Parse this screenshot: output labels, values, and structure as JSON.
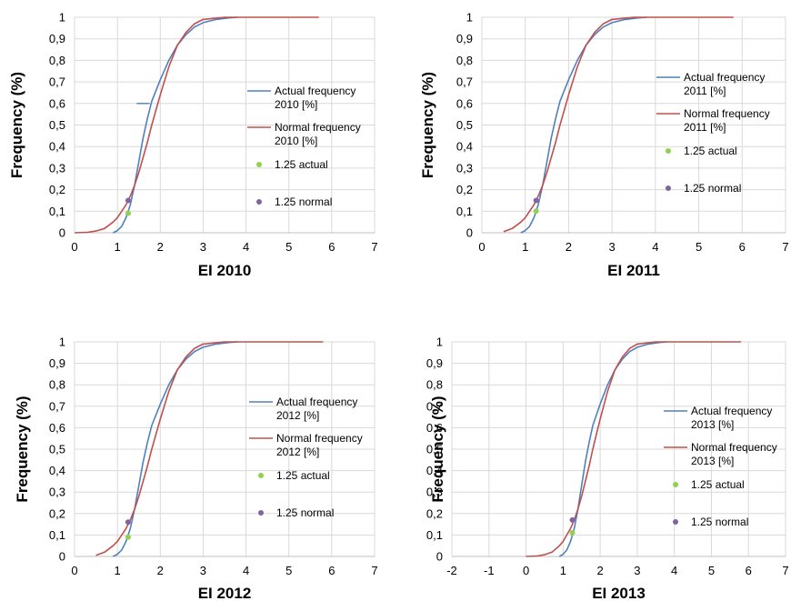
{
  "chart_data": [
    {
      "type": "line",
      "xlabel": "EI 2010",
      "ylabel": "Frequency (%)",
      "xlim": [
        0,
        7
      ],
      "ylim": [
        0,
        1
      ],
      "xticks": [
        "0",
        "1",
        "2",
        "3",
        "4",
        "5",
        "6",
        "7"
      ],
      "yticks": [
        "0",
        "0,1",
        "0,2",
        "0,3",
        "0,4",
        "0,5",
        "0,6",
        "0,7",
        "0,8",
        "0,9",
        "1"
      ],
      "grid": true,
      "legend_position": "right",
      "series": [
        {
          "name": "Actual frequency 2010 [%]",
          "color": "#4f81bd",
          "x": [
            0.9,
            1.0,
            1.1,
            1.2,
            1.3,
            1.4,
            1.5,
            1.6,
            1.7,
            1.8,
            2.0,
            2.2,
            2.4,
            2.6,
            2.8,
            3.0,
            3.3,
            3.6,
            3.8
          ],
          "y": [
            0,
            0.01,
            0.03,
            0.07,
            0.13,
            0.22,
            0.33,
            0.44,
            0.53,
            0.61,
            0.71,
            0.8,
            0.87,
            0.92,
            0.955,
            0.975,
            0.99,
            0.997,
            1
          ]
        },
        {
          "name": "Normal frequency 2010 [%]",
          "color": "#c0504d",
          "x": [
            0,
            0.3,
            0.5,
            0.7,
            0.9,
            1.0,
            1.1,
            1.2,
            1.3,
            1.4,
            1.5,
            1.6,
            1.7,
            1.8,
            1.9,
            2.0,
            2.2,
            2.4,
            2.6,
            2.8,
            3.0,
            3.5,
            4.0,
            5.7
          ],
          "y": [
            0,
            0.002,
            0.008,
            0.02,
            0.05,
            0.07,
            0.1,
            0.13,
            0.17,
            0.22,
            0.28,
            0.35,
            0.42,
            0.5,
            0.57,
            0.64,
            0.77,
            0.87,
            0.93,
            0.97,
            0.99,
            1,
            1,
            1
          ]
        },
        {
          "name": "1.25 actual",
          "color": "#92d050",
          "marker": "dot",
          "x": [
            1.25
          ],
          "y": [
            0.09
          ]
        },
        {
          "name": "1.25 normal",
          "color": "#8064a2",
          "marker": "dot",
          "x": [
            1.25
          ],
          "y": [
            0.15
          ]
        }
      ],
      "extra_segment": {
        "x": [
          1.45,
          1.75
        ],
        "y": 0.6,
        "color": "#4f81bd"
      }
    },
    {
      "type": "line",
      "xlabel": "EI 2011",
      "ylabel": "Frequency (%)",
      "xlim": [
        0,
        7
      ],
      "ylim": [
        0,
        1
      ],
      "xticks": [
        "0",
        "1",
        "2",
        "3",
        "4",
        "5",
        "6",
        "7"
      ],
      "yticks": [
        "0",
        "0,1",
        "0,2",
        "0,3",
        "0,4",
        "0,5",
        "0,6",
        "0,7",
        "0,8",
        "0,9",
        "1"
      ],
      "grid": true,
      "legend_position": "right",
      "series": [
        {
          "name": "Actual frequency 2011 [%]",
          "color": "#4f81bd",
          "x": [
            0.9,
            1.0,
            1.1,
            1.2,
            1.3,
            1.4,
            1.5,
            1.6,
            1.7,
            1.8,
            2.0,
            2.2,
            2.4,
            2.6,
            2.8,
            3.0,
            3.3,
            3.6,
            3.8
          ],
          "y": [
            0,
            0.01,
            0.03,
            0.07,
            0.13,
            0.22,
            0.33,
            0.44,
            0.53,
            0.61,
            0.71,
            0.8,
            0.87,
            0.92,
            0.955,
            0.975,
            0.99,
            0.997,
            1
          ]
        },
        {
          "name": "Normal frequency 2011 [%]",
          "color": "#c0504d",
          "x": [
            0.5,
            0.7,
            0.9,
            1.0,
            1.1,
            1.2,
            1.3,
            1.4,
            1.5,
            1.6,
            1.7,
            1.8,
            1.9,
            2.0,
            2.2,
            2.4,
            2.6,
            2.8,
            3.0,
            3.5,
            4.0,
            5.8
          ],
          "y": [
            0.005,
            0.02,
            0.05,
            0.07,
            0.1,
            0.13,
            0.17,
            0.22,
            0.28,
            0.35,
            0.42,
            0.5,
            0.57,
            0.64,
            0.77,
            0.87,
            0.93,
            0.97,
            0.99,
            1,
            1,
            1
          ]
        },
        {
          "name": "1.25 actual",
          "color": "#92d050",
          "marker": "dot",
          "x": [
            1.25
          ],
          "y": [
            0.1
          ]
        },
        {
          "name": "1.25 normal",
          "color": "#8064a2",
          "marker": "dot",
          "x": [
            1.25
          ],
          "y": [
            0.15
          ]
        }
      ]
    },
    {
      "type": "line",
      "xlabel": "EI 2012",
      "ylabel": "Frequency (%)",
      "xlim": [
        0,
        7
      ],
      "ylim": [
        0,
        1
      ],
      "xticks": [
        "0",
        "1",
        "2",
        "3",
        "4",
        "5",
        "6",
        "7"
      ],
      "yticks": [
        "0",
        "0,1",
        "0,2",
        "0,3",
        "0,4",
        "0,5",
        "0,6",
        "0,7",
        "0,8",
        "0,9",
        "1"
      ],
      "grid": true,
      "legend_position": "right",
      "series": [
        {
          "name": "Actual frequency 2012 [%]",
          "color": "#4f81bd",
          "x": [
            0.9,
            1.0,
            1.1,
            1.2,
            1.3,
            1.4,
            1.5,
            1.6,
            1.7,
            1.8,
            2.0,
            2.2,
            2.4,
            2.6,
            2.8,
            3.0,
            3.3,
            3.6,
            3.8
          ],
          "y": [
            0,
            0.01,
            0.03,
            0.07,
            0.13,
            0.22,
            0.33,
            0.44,
            0.53,
            0.61,
            0.71,
            0.8,
            0.87,
            0.92,
            0.955,
            0.975,
            0.99,
            0.997,
            1
          ]
        },
        {
          "name": "Normal frequency 2012 [%]",
          "color": "#c0504d",
          "x": [
            0.5,
            0.7,
            0.9,
            1.0,
            1.1,
            1.2,
            1.3,
            1.4,
            1.5,
            1.6,
            1.7,
            1.8,
            1.9,
            2.0,
            2.2,
            2.4,
            2.6,
            2.8,
            3.0,
            3.5,
            4.0,
            5.8
          ],
          "y": [
            0.005,
            0.02,
            0.05,
            0.07,
            0.1,
            0.13,
            0.17,
            0.22,
            0.28,
            0.35,
            0.42,
            0.5,
            0.57,
            0.64,
            0.77,
            0.87,
            0.93,
            0.97,
            0.99,
            1,
            1,
            1
          ]
        },
        {
          "name": "1.25 actual",
          "color": "#92d050",
          "marker": "dot",
          "x": [
            1.25
          ],
          "y": [
            0.09
          ]
        },
        {
          "name": "1.25 normal",
          "color": "#8064a2",
          "marker": "dot",
          "x": [
            1.25
          ],
          "y": [
            0.16
          ]
        }
      ]
    },
    {
      "type": "line",
      "xlabel": "EI 2013",
      "ylabel": "Frequency (%)",
      "xlim": [
        -2,
        7
      ],
      "ylim": [
        0,
        1
      ],
      "xticks": [
        "-2",
        "-1",
        "0",
        "1",
        "2",
        "3",
        "4",
        "5",
        "6",
        "7"
      ],
      "yticks": [
        "0",
        "0,1",
        "0,2",
        "0,3",
        "0,4",
        "0,5",
        "0,6",
        "0,7",
        "0,8",
        "0,9",
        "1"
      ],
      "grid": true,
      "legend_position": "right",
      "series": [
        {
          "name": "Actual frequency 2013 [%]",
          "color": "#4f81bd",
          "x": [
            0.9,
            1.0,
            1.1,
            1.2,
            1.3,
            1.4,
            1.5,
            1.6,
            1.7,
            1.8,
            2.0,
            2.2,
            2.4,
            2.6,
            2.8,
            3.0,
            3.3,
            3.6,
            3.8
          ],
          "y": [
            0,
            0.01,
            0.03,
            0.07,
            0.13,
            0.22,
            0.33,
            0.44,
            0.53,
            0.61,
            0.71,
            0.8,
            0.87,
            0.92,
            0.955,
            0.975,
            0.99,
            0.997,
            1
          ]
        },
        {
          "name": "Normal frequency 2013 [%]",
          "color": "#c0504d",
          "x": [
            0.0,
            0.3,
            0.5,
            0.7,
            0.9,
            1.0,
            1.1,
            1.2,
            1.3,
            1.4,
            1.5,
            1.6,
            1.7,
            1.8,
            1.9,
            2.0,
            2.2,
            2.4,
            2.6,
            2.8,
            3.0,
            3.5,
            4.0,
            5.8
          ],
          "y": [
            0,
            0.002,
            0.008,
            0.02,
            0.05,
            0.07,
            0.1,
            0.13,
            0.17,
            0.22,
            0.28,
            0.35,
            0.42,
            0.5,
            0.57,
            0.64,
            0.77,
            0.87,
            0.93,
            0.97,
            0.99,
            1,
            1,
            1
          ]
        },
        {
          "name": "1.25 actual",
          "color": "#92d050",
          "marker": "dot",
          "x": [
            1.25
          ],
          "y": [
            0.11
          ]
        },
        {
          "name": "1.25 normal",
          "color": "#8064a2",
          "marker": "dot",
          "x": [
            1.25
          ],
          "y": [
            0.17
          ]
        }
      ]
    }
  ],
  "legend_labels": [
    {
      "actual": [
        "Actual frequency",
        "2010 [%]"
      ],
      "normal": [
        "Normal frequency",
        "2010 [%]"
      ],
      "dot_actual": "1.25 actual",
      "dot_normal": "1.25 normal"
    },
    {
      "actual": [
        "Actual frequency",
        "2011 [%]"
      ],
      "normal": [
        "Normal frequency",
        "2011 [%]"
      ],
      "dot_actual": "1.25 actual",
      "dot_normal": "1.25 normal"
    },
    {
      "actual": [
        "Actual frequency",
        "2012 [%]"
      ],
      "normal": [
        "Normal frequency",
        "2012 [%]"
      ],
      "dot_actual": "1.25 actual",
      "dot_normal": "1.25 normal"
    },
    {
      "actual": [
        "Actual frequency",
        "2013 [%]"
      ],
      "normal": [
        "Normal frequency",
        "2013 [%]"
      ],
      "dot_actual": "1.25 actual",
      "dot_normal": "1.25 normal"
    }
  ]
}
